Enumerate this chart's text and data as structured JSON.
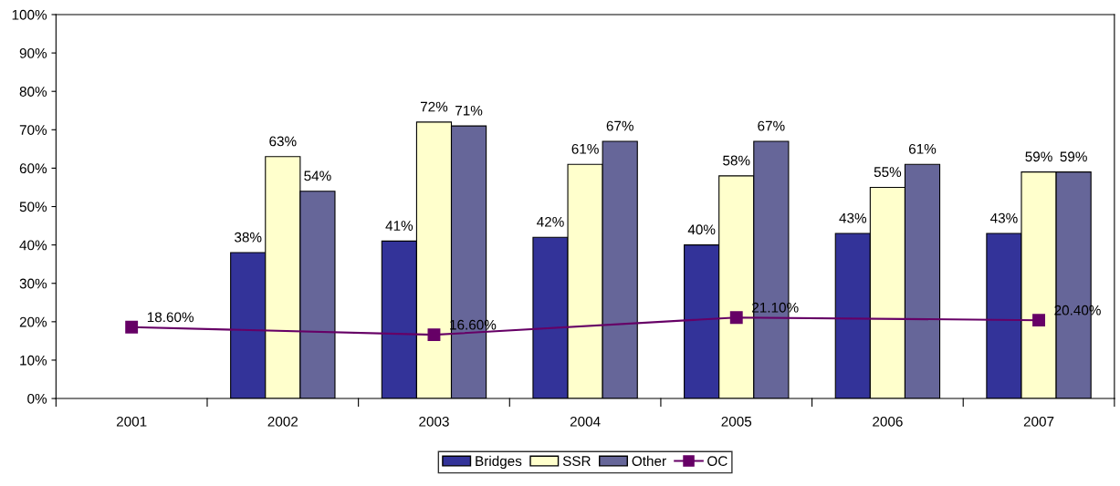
{
  "chart_data": {
    "type": "bar",
    "categories": [
      "2001",
      "2002",
      "2003",
      "2004",
      "2005",
      "2006",
      "2007"
    ],
    "series": [
      {
        "name": "Bridges",
        "color": "#333399",
        "values": [
          null,
          38,
          41,
          42,
          40,
          43,
          43
        ],
        "value_labels": [
          null,
          "38%",
          "41%",
          "42%",
          "40%",
          "43%",
          "43%"
        ]
      },
      {
        "name": "SSR",
        "color": "#ffffcc",
        "values": [
          null,
          63,
          72,
          61,
          58,
          55,
          59
        ],
        "value_labels": [
          null,
          "63%",
          "72%",
          "61%",
          "58%",
          "55%",
          "59%"
        ]
      },
      {
        "name": "Other",
        "color": "#666699",
        "values": [
          null,
          54,
          71,
          67,
          67,
          61,
          59
        ],
        "value_labels": [
          null,
          "54%",
          "71%",
          "67%",
          "67%",
          "61%",
          "59%"
        ]
      },
      {
        "name": "OC",
        "type": "line",
        "color": "#660066",
        "values": [
          18.6,
          null,
          16.6,
          null,
          21.1,
          null,
          20.4
        ],
        "value_labels": [
          "18.60%",
          null,
          "16.60%",
          null,
          "21.10%",
          null,
          "20.40%"
        ],
        "marker": "square"
      }
    ],
    "ylim": [
      0,
      100
    ],
    "yticks": [
      {
        "value": 0,
        "label": "0%"
      },
      {
        "value": 10,
        "label": "10%"
      },
      {
        "value": 20,
        "label": "20%"
      },
      {
        "value": 30,
        "label": "30%"
      },
      {
        "value": 40,
        "label": "40%"
      },
      {
        "value": 50,
        "label": "50%"
      },
      {
        "value": 60,
        "label": "60%"
      },
      {
        "value": 70,
        "label": "70%"
      },
      {
        "value": 80,
        "label": "80%"
      },
      {
        "value": 90,
        "label": "90%"
      },
      {
        "value": 100,
        "label": "100%"
      }
    ],
    "grid": false,
    "legend": "bottom"
  }
}
